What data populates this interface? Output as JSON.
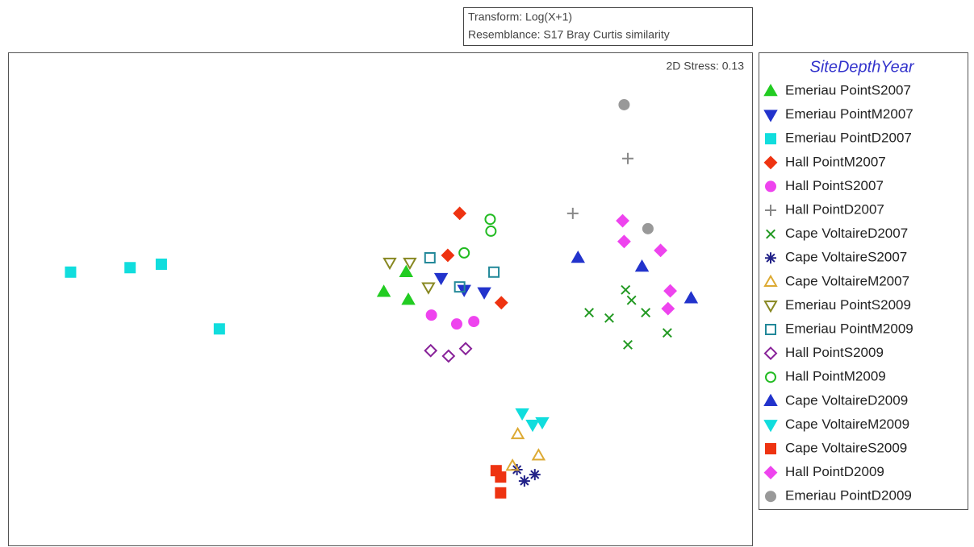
{
  "chart_data": {
    "type": "scatter",
    "notes": [
      "Transform: Log(X+1)",
      "Resemblance: S17 Bray Curtis similarity"
    ],
    "annotation": "2D Stress: 0.13",
    "legend_title": "SiteDepthYear",
    "xlim": [
      0,
      100
    ],
    "ylim": [
      0,
      100
    ],
    "series": [
      {
        "name": "Emeriau PointS2007",
        "color": "#22cc22",
        "marker": "triangle",
        "filled": true,
        "x": [
          50.5,
          53.5,
          53.8
        ],
        "y": [
          51.5,
          55.5,
          49.9
        ]
      },
      {
        "name": "Emeriau PointM2007",
        "color": "#2233cc",
        "marker": "triangle-down",
        "filled": true,
        "x": [
          58.2,
          61.3,
          64.0
        ],
        "y": [
          54.3,
          51.9,
          51.4
        ]
      },
      {
        "name": "Emeriau PointD2007",
        "color": "#11dddd",
        "marker": "square",
        "filled": true,
        "x": [
          8.4,
          16.4,
          20.6,
          28.4
        ],
        "y": [
          55.5,
          56.4,
          57.1,
          44.0
        ]
      },
      {
        "name": "Hall PointM2007",
        "color": "#ee3311",
        "marker": "diamond",
        "filled": true,
        "x": [
          60.7,
          59.1,
          66.3
        ],
        "y": [
          67.4,
          58.9,
          49.3
        ]
      },
      {
        "name": "Hall PointS2007",
        "color": "#ee44ee",
        "marker": "circle",
        "filled": true,
        "x": [
          56.9,
          60.3,
          62.6
        ],
        "y": [
          46.8,
          45.0,
          45.5
        ]
      },
      {
        "name": "Hall PointD2007",
        "color": "#888888",
        "marker": "plus",
        "filled": false,
        "x": [
          83.3,
          75.9
        ],
        "y": [
          78.5,
          67.4
        ]
      },
      {
        "name": "Cape VoltaireD2007",
        "color": "#229922",
        "marker": "x",
        "filled": false,
        "x": [
          83.0,
          83.8,
          78.1,
          80.8,
          85.7,
          88.6,
          83.3
        ],
        "y": [
          51.9,
          49.8,
          47.3,
          46.2,
          47.3,
          43.2,
          40.8
        ]
      },
      {
        "name": "Cape VoltaireS2007",
        "color": "#222288",
        "marker": "asterisk",
        "filled": false,
        "x": [
          68.4,
          69.4,
          70.8
        ],
        "y": [
          15.5,
          13.2,
          14.5
        ]
      },
      {
        "name": "Cape VoltaireM2007",
        "color": "#ddaa33",
        "marker": "triangle",
        "filled": false,
        "x": [
          68.5,
          71.3,
          67.8
        ],
        "y": [
          22.7,
          18.4,
          16.3
        ]
      },
      {
        "name": "Emeriau PointS2009",
        "color": "#888822",
        "marker": "triangle-down",
        "filled": false,
        "x": [
          51.3,
          54.0,
          56.5
        ],
        "y": [
          57.4,
          57.4,
          52.4
        ]
      },
      {
        "name": "Emeriau PointM2009",
        "color": "#228899",
        "marker": "square",
        "filled": false,
        "x": [
          56.7,
          60.7,
          65.3
        ],
        "y": [
          58.4,
          52.5,
          55.5
        ]
      },
      {
        "name": "Hall PointS2009",
        "color": "#882299",
        "marker": "diamond",
        "filled": false,
        "x": [
          56.8,
          59.2,
          61.5
        ],
        "y": [
          39.6,
          38.5,
          40.0
        ]
      },
      {
        "name": "Hall PointM2009",
        "color": "#22bb22",
        "marker": "circle",
        "filled": false,
        "x": [
          64.8,
          64.9,
          61.3
        ],
        "y": [
          66.2,
          63.8,
          59.4
        ]
      },
      {
        "name": "Cape VoltaireD2009",
        "color": "#2233cc",
        "marker": "triangle",
        "filled": true,
        "x": [
          76.6,
          85.2,
          91.8
        ],
        "y": [
          58.4,
          56.6,
          50.2
        ]
      },
      {
        "name": "Cape VoltaireM2009",
        "color": "#11dddd",
        "marker": "triangle-down",
        "filled": true,
        "x": [
          69.1,
          70.5,
          71.8
        ],
        "y": [
          26.9,
          24.6,
          25.1
        ]
      },
      {
        "name": "Cape VoltaireS2009",
        "color": "#ee3311",
        "marker": "square",
        "filled": true,
        "x": [
          65.6,
          66.2,
          66.2
        ],
        "y": [
          15.3,
          14.0,
          10.8
        ]
      },
      {
        "name": "Hall PointD2009",
        "color": "#ee44ee",
        "marker": "diamond",
        "filled": true,
        "x": [
          82.6,
          82.8,
          87.7,
          89.0,
          88.7
        ],
        "y": [
          65.9,
          61.7,
          59.9,
          51.7,
          48.1
        ]
      },
      {
        "name": "Emeriau PointD2009",
        "color": "#999999",
        "marker": "circle",
        "filled": true,
        "x": [
          82.8,
          86.0
        ],
        "y": [
          89.4,
          64.3
        ]
      }
    ]
  }
}
